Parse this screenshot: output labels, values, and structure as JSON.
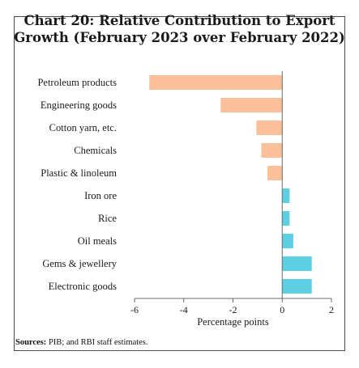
{
  "title_line1": "Chart 20: Relative Contribution to Export",
  "title_line2": "Growth (February 2023 over February 2022)",
  "source_label": "Sources:",
  "source_text": " PIB; and RBI staff estimates.",
  "chart_data": {
    "type": "bar",
    "orientation": "horizontal",
    "categories": [
      "Petroleum products",
      "Engineering goods",
      "Cotton yarn, etc.",
      "Chemicals",
      "Plastic & linoleum",
      "Iron ore",
      "Rice",
      "Oil meals",
      "Gems & jewellery",
      "Electronic goods"
    ],
    "values": [
      -5.4,
      -2.5,
      -1.05,
      -0.85,
      -0.6,
      0.3,
      0.3,
      0.45,
      1.2,
      1.2
    ],
    "xlabel": "Percentage points",
    "xlim": [
      -6,
      2
    ],
    "xticks": [
      -6,
      -4,
      -2,
      0,
      2
    ],
    "colors": {
      "negative": "#fbbf9a",
      "positive": "#5ecfe3"
    },
    "grid": false
  }
}
